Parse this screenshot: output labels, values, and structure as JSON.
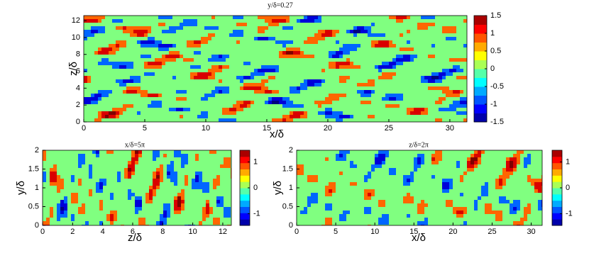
{
  "chart_data": [
    {
      "type": "contour",
      "title": "y/δ=0.27",
      "x_label": "x/δ",
      "y_label": "z/δ",
      "xlim": [
        0,
        31.4
      ],
      "xticks": [
        0,
        5,
        10,
        15,
        20,
        25,
        30
      ],
      "ylim": [
        0,
        12.6
      ],
      "yticks": [
        0,
        2,
        4,
        6,
        8,
        10,
        12
      ],
      "colorbar": {
        "clim": [
          -1.5,
          1.5
        ],
        "ticks": [
          -1.5,
          -1,
          -0.5,
          0,
          0.5,
          1,
          1.5
        ]
      }
    },
    {
      "type": "contour",
      "title": "x/δ=5π",
      "x_label": "z/δ",
      "y_label": "y/δ",
      "xlim": [
        0,
        12.57
      ],
      "xticks": [
        0,
        2,
        4,
        6,
        8,
        10,
        12
      ],
      "ylim": [
        0,
        2
      ],
      "yticks": [
        0,
        0.5,
        1,
        1.5,
        2
      ],
      "colorbar": {
        "clim": [
          -1.45,
          1.45
        ],
        "ticks": [
          -1,
          0,
          1
        ]
      }
    },
    {
      "type": "contour",
      "title": "z/δ=2π",
      "x_label": "x/δ",
      "y_label": "y/δ",
      "xlim": [
        0,
        31.4
      ],
      "xticks": [
        0,
        5,
        10,
        15,
        20,
        25,
        30
      ],
      "ylim": [
        0,
        2
      ],
      "yticks": [
        0,
        0.5,
        1,
        1.5,
        2
      ],
      "colorbar": {
        "clim": [
          -1.45,
          1.45
        ],
        "ticks": [
          -1,
          0,
          1
        ]
      }
    }
  ]
}
